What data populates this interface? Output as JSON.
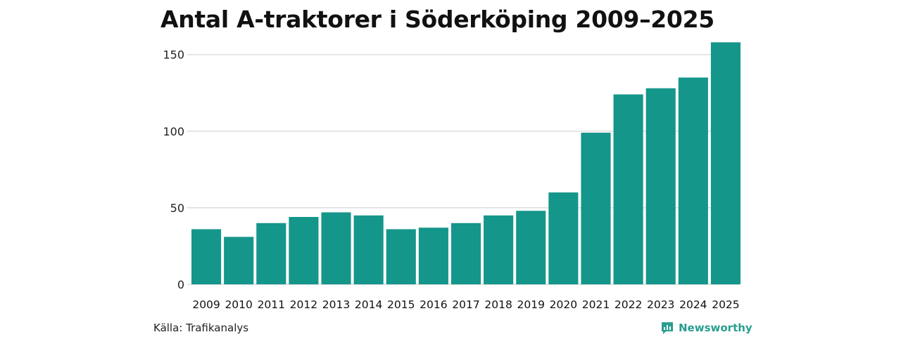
{
  "chart_data": {
    "type": "bar",
    "title": "Antal A-traktorer i Söderköping 2009–2025",
    "categories": [
      "2009",
      "2010",
      "2011",
      "2012",
      "2013",
      "2014",
      "2015",
      "2016",
      "2017",
      "2018",
      "2019",
      "2020",
      "2021",
      "2022",
      "2023",
      "2024",
      "2025"
    ],
    "values": [
      36,
      31,
      40,
      44,
      47,
      45,
      36,
      37,
      40,
      45,
      48,
      60,
      99,
      124,
      128,
      135,
      158
    ],
    "xlabel": "",
    "ylabel": "",
    "ylim": [
      0,
      165
    ],
    "yticks": [
      0,
      50,
      100,
      150
    ],
    "grid": true,
    "bar_color": "#15968a",
    "grid_color": "#dddddd"
  },
  "footer": {
    "source": "Källa: Trafikanalys",
    "brand": "Newsworthy",
    "brand_icon": "bar-chart-icon",
    "brand_color": "#2a9d8f"
  }
}
